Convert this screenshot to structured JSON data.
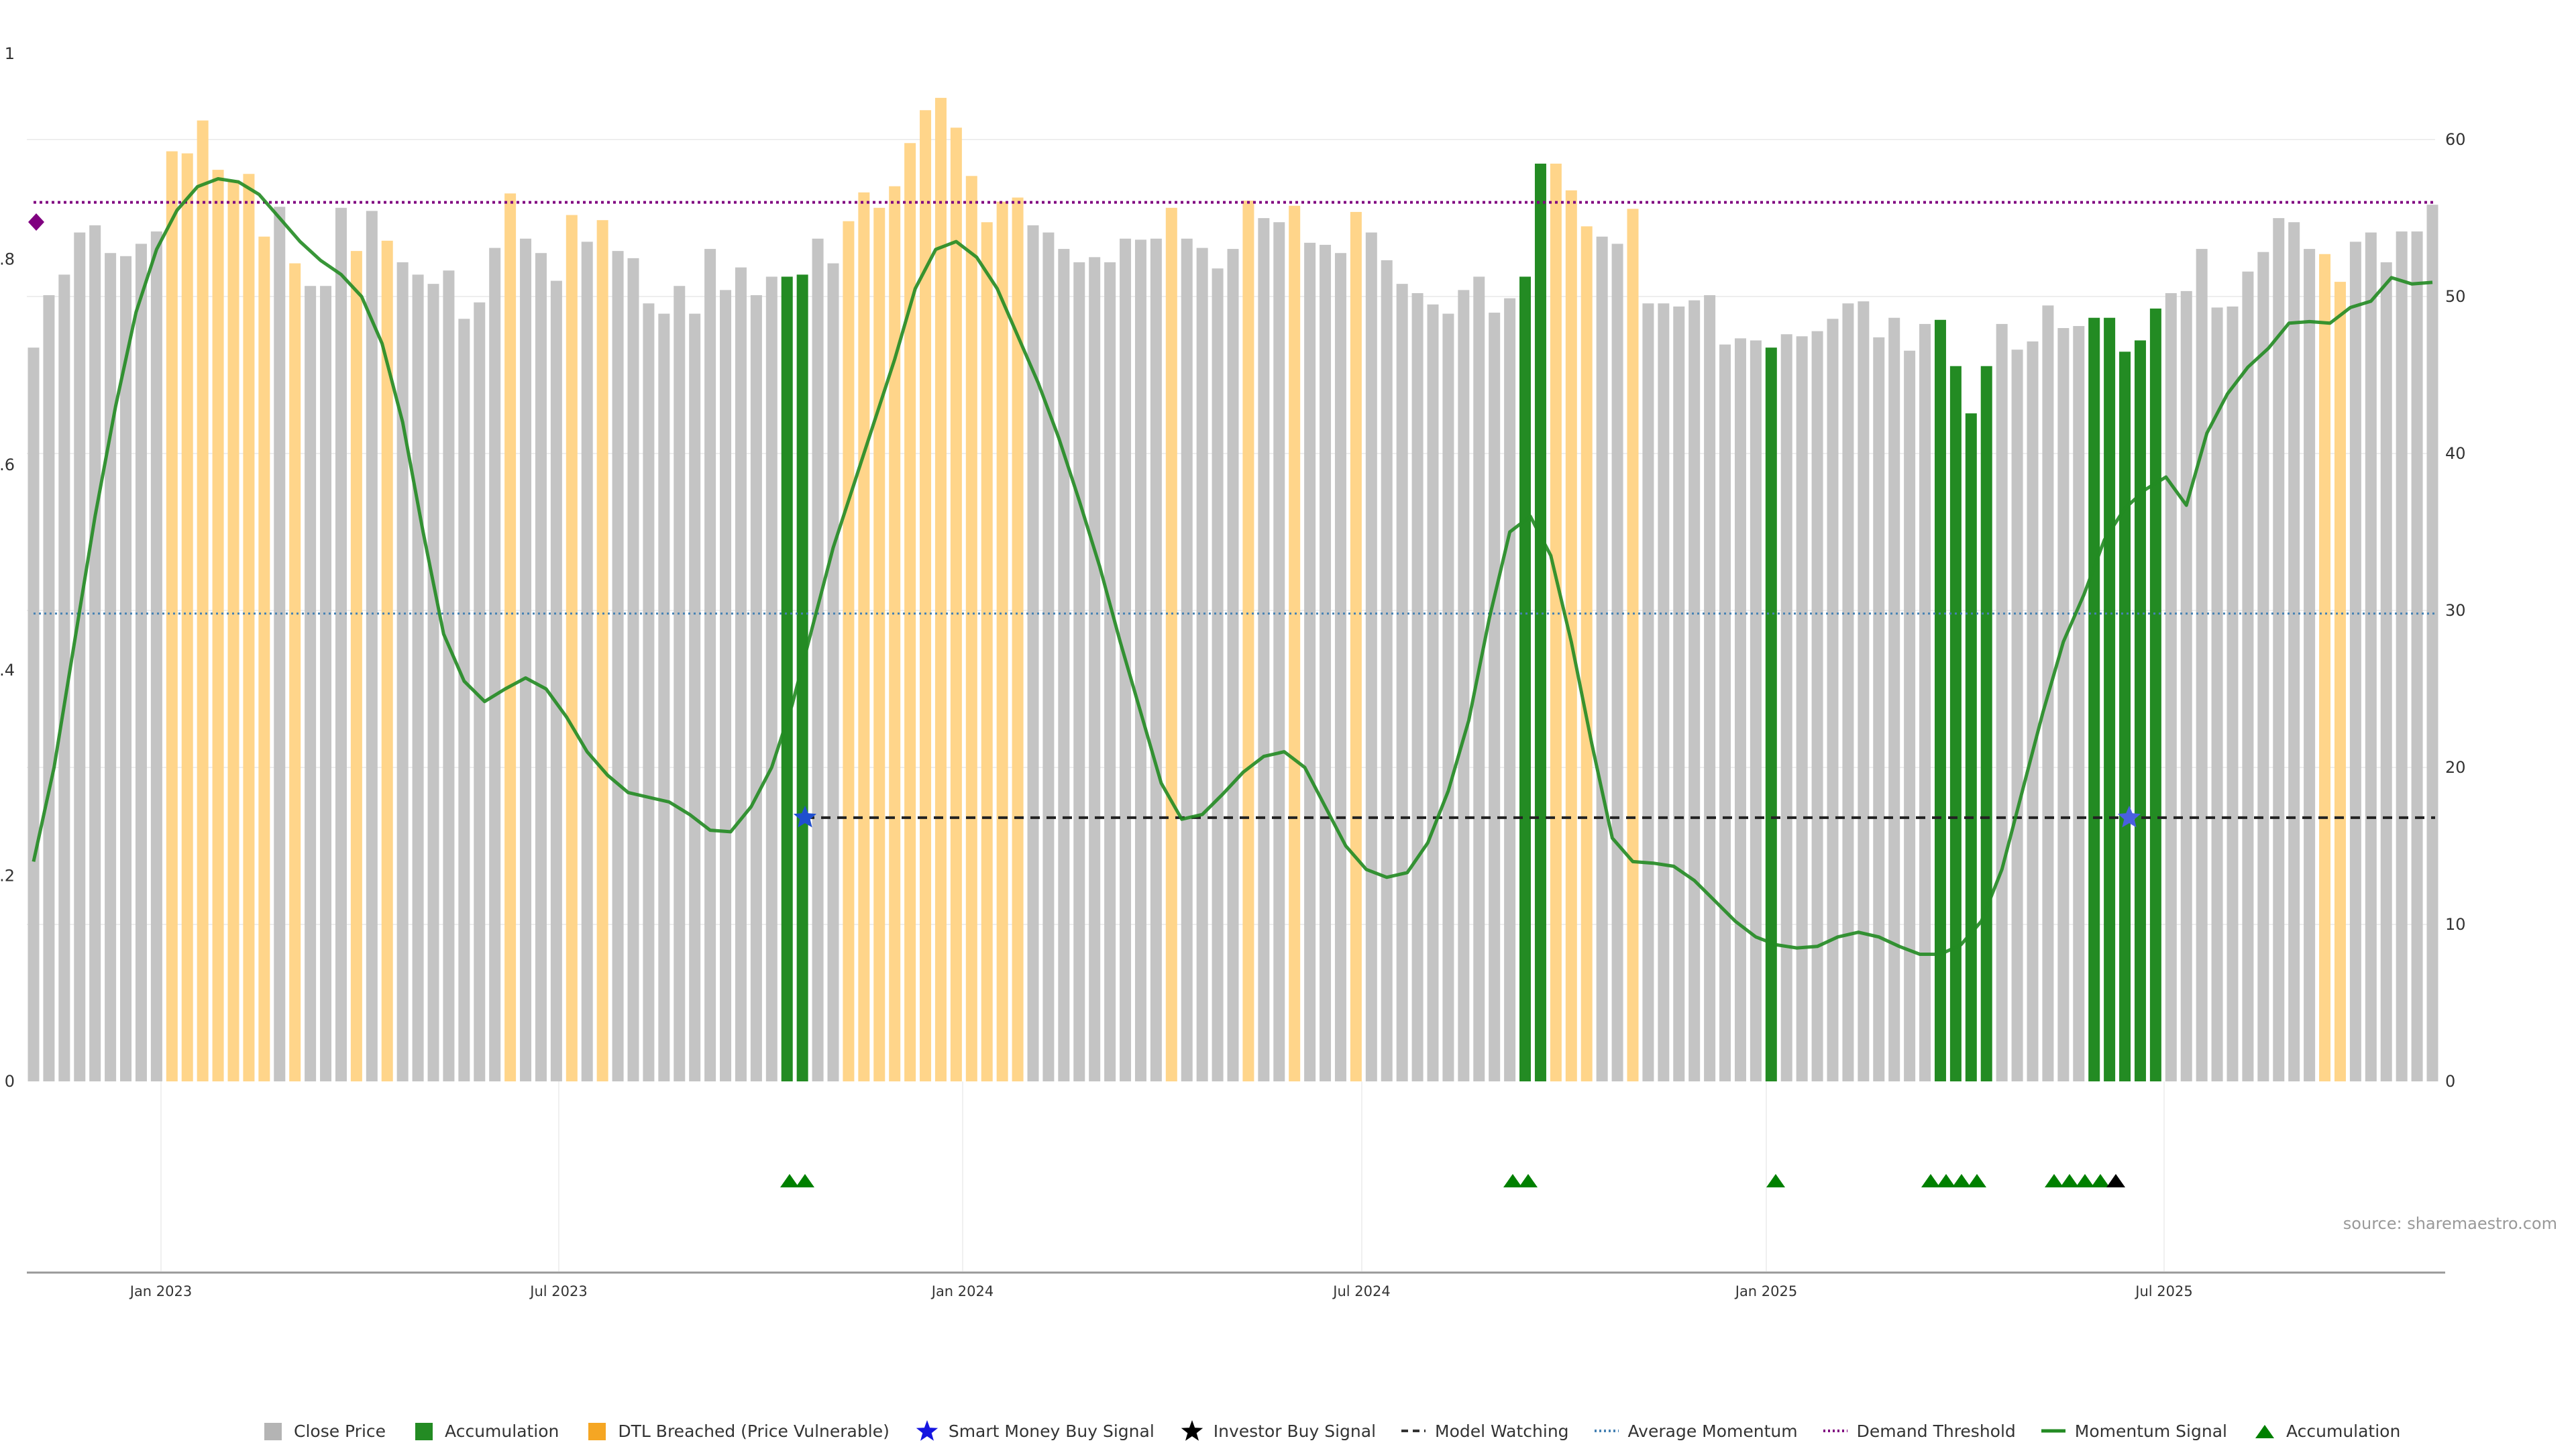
{
  "chart_data": {
    "type": "bar",
    "title": "",
    "source": "source: sharemaestro.com",
    "left_axis": {
      "ticks": [
        "0",
        "0.2",
        "0.4",
        "0.6",
        "0.8",
        "1"
      ],
      "range": [
        0,
        1
      ]
    },
    "right_axis": {
      "ticks": [
        "0",
        "10",
        "20",
        "30",
        "40",
        "50",
        "60"
      ],
      "range": [
        0,
        67
      ]
    },
    "x_labels": [
      "Jan 2023",
      "Jul 2023",
      "Jan 2024",
      "Jul 2024",
      "Jan 2025",
      "Jul 2025"
    ],
    "bar_heights": [
      0.714,
      0.765,
      0.785,
      0.826,
      0.833,
      0.806,
      0.803,
      0.815,
      0.827,
      0.905,
      0.903,
      0.935,
      0.887,
      0.877,
      0.883,
      0.822,
      0.851,
      0.796,
      0.774,
      0.774,
      0.85,
      0.808,
      0.847,
      0.818,
      0.797,
      0.785,
      0.776,
      0.789,
      0.742,
      0.758,
      0.811,
      0.864,
      0.82,
      0.806,
      0.779,
      0.843,
      0.817,
      0.838,
      0.808,
      0.801,
      0.757,
      0.747,
      0.774,
      0.747,
      0.81,
      0.77,
      0.792,
      0.765,
      0.783,
      0.783,
      0.785,
      0.82,
      0.796,
      0.837,
      0.865,
      0.85,
      0.871,
      0.913,
      0.945,
      0.957,
      0.928,
      0.881,
      0.836,
      0.856,
      0.86,
      0.833,
      0.826,
      0.81,
      0.797,
      0.802,
      0.797,
      0.82,
      0.819,
      0.82,
      0.85,
      0.82,
      0.811,
      0.791,
      0.81,
      0.857,
      0.84,
      0.836,
      0.852,
      0.816,
      0.814,
      0.806,
      0.846,
      0.826,
      0.799,
      0.776,
      0.767,
      0.756,
      0.747,
      0.77,
      0.783,
      0.748,
      0.762,
      0.783,
      0.893,
      0.893,
      0.867,
      0.832,
      0.822,
      0.815,
      0.849,
      0.757,
      0.757,
      0.754,
      0.76,
      0.765,
      0.717,
      0.723,
      0.721,
      0.714,
      0.727,
      0.725,
      0.73,
      0.742,
      0.757,
      0.759,
      0.724,
      0.743,
      0.711,
      0.737,
      0.741,
      0.696,
      0.65,
      0.696,
      0.737,
      0.712,
      0.72,
      0.755,
      0.733,
      0.735,
      0.743,
      0.743,
      0.71,
      0.721,
      0.752,
      0.767,
      0.769,
      0.81,
      0.753,
      0.754,
      0.788,
      0.807,
      0.84,
      0.836,
      0.81,
      0.805,
      0.778,
      0.817,
      0.826,
      0.797,
      0.827,
      0.827,
      0.853
    ],
    "bar_categories": "GGGGGGGGGYYYYYYYGYGGGYGYGGGGGGGYGGGYGYGGGGGGGGGGGAAGGYYYYYYYYYYYYGGGGGGGGGYGGGGYGGYGGGYGGGGGGGGGGAAYYYGGYGGGGGGGGAGGGGGGGGGGAAAAGGGGGGAAAAAGGGGGGGGGGYYGGGGGGGGGGY",
    "momentum_signal": [
      14,
      20,
      28,
      36,
      43,
      49,
      53,
      55.5,
      57,
      57.5,
      57.3,
      56.5,
      55,
      53.5,
      52.3,
      51.4,
      50,
      47,
      42,
      35,
      28.5,
      25.5,
      24.2,
      25,
      25.7,
      25,
      23.2,
      21,
      19.5,
      18.4,
      18.1,
      17.8,
      17,
      16,
      15.9,
      17.5,
      20,
      24,
      29,
      34,
      38,
      42,
      46,
      50.5,
      53,
      53.5,
      52.5,
      50.5,
      47.5,
      44.5,
      41,
      37,
      32.8,
      28,
      23.5,
      19,
      16.7,
      17,
      18.3,
      19.7,
      20.7,
      21,
      20,
      17.5,
      15,
      13.5,
      13,
      13.3,
      15.2,
      18.5,
      23,
      29.5,
      35,
      36,
      33.5,
      28,
      21.5,
      15.5,
      14,
      13.9,
      13.7,
      12.8,
      11.5,
      10.2,
      9.2,
      8.7,
      8.5,
      8.6,
      9.2,
      9.5,
      9.2,
      8.6,
      8.1,
      8.1,
      8.7,
      10.2,
      13.5,
      18.5,
      23.5,
      28,
      31,
      34.5,
      36.5,
      37.7,
      38.5,
      36.7,
      41.3,
      43.8,
      45.5,
      46.7,
      48.3,
      48.4,
      48.3,
      49.3,
      49.7,
      51.2,
      50.8,
      50.9
    ],
    "avg_momentum": 29.8,
    "demand_threshold": 56,
    "model_watching": 16.8,
    "smart_money_signals": [
      {
        "date": "Oct 2023",
        "value": 16.8
      },
      {
        "date": "Jun 2025",
        "value": 16.8
      }
    ],
    "accumulation_markers": [
      "Oct 2023",
      "Oct 2023",
      "Sep 2024",
      "Sep 2024",
      "Jan 2025",
      "Apr 2025",
      "Apr 2025",
      "Apr 2025",
      "Apr 2025",
      "May 2025",
      "May 2025",
      "May 2025",
      "Jun 2025"
    ],
    "investor_signal": "Jun 2025"
  },
  "legend": [
    {
      "label": "Close Price",
      "symbol": "square",
      "color": "#b4b4b4"
    },
    {
      "label": "Accumulation",
      "symbol": "square",
      "color": "#238b23"
    },
    {
      "label": "DTL Breached (Price Vulnerable)",
      "symbol": "square",
      "color": "#f5a623"
    },
    {
      "label": "Smart Money Buy Signal",
      "symbol": "star",
      "color": "#1515e0"
    },
    {
      "label": "Investor Buy Signal",
      "symbol": "star",
      "color": "#000000"
    },
    {
      "label": "Model Watching",
      "symbol": "dash",
      "color": "#333333"
    },
    {
      "label": "Average Momentum",
      "symbol": "dot",
      "color": "#4682b4"
    },
    {
      "label": "Demand Threshold",
      "symbol": "dot",
      "color": "#800080"
    },
    {
      "label": "Momentum Signal",
      "symbol": "line",
      "color": "#238b23"
    },
    {
      "label": "Accumulation",
      "symbol": "triangle",
      "color": "#008000"
    }
  ],
  "colors": {
    "grey_bar": "#c4c4c4",
    "green_bar": "#238b23",
    "yellow_bar": "#ffd58a",
    "momentum": "#228b22",
    "threshold": "#800080",
    "avg": "#4682b4"
  }
}
